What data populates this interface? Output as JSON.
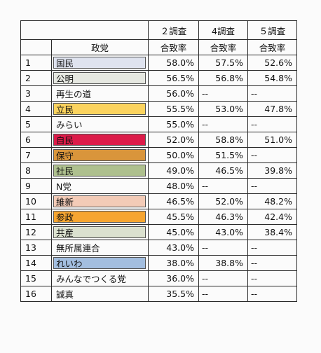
{
  "header": {
    "col_party": "政党",
    "surveys": [
      "２調査",
      "4調査",
      "５調査"
    ],
    "metric": "合致率"
  },
  "rows": [
    {
      "no": "1",
      "party": "国民",
      "color": "#dfe3ef",
      "v": [
        "58.0%",
        "57.5%",
        "52.6%"
      ]
    },
    {
      "no": "2",
      "party": "公明",
      "color": "#e6e8e1",
      "v": [
        "56.5%",
        "56.8%",
        "54.8%"
      ]
    },
    {
      "no": "3",
      "party": "再生の道",
      "color": "",
      "v": [
        "56.0%",
        "--",
        "--"
      ]
    },
    {
      "no": "4",
      "party": "立民",
      "color": "#fbd35e",
      "v": [
        "55.5%",
        "53.0%",
        "47.8%"
      ]
    },
    {
      "no": "5",
      "party": "みらい",
      "color": "",
      "v": [
        "55.0%",
        "--",
        "--"
      ]
    },
    {
      "no": "6",
      "party": "自民",
      "color": "#dc1b49",
      "v": [
        "52.0%",
        "58.8%",
        "51.0%"
      ]
    },
    {
      "no": "7",
      "party": "保守",
      "color": "#d9953b",
      "v": [
        "50.0%",
        "51.5%",
        "--"
      ]
    },
    {
      "no": "8",
      "party": "社民",
      "color": "#aec08e",
      "v": [
        "49.0%",
        "46.5%",
        "39.8%"
      ]
    },
    {
      "no": "9",
      "party": "N党",
      "color": "",
      "v": [
        "48.0%",
        "--",
        "--"
      ]
    },
    {
      "no": "10",
      "party": "維新",
      "color": "#f3cbb7",
      "v": [
        "46.5%",
        "52.0%",
        "48.2%"
      ]
    },
    {
      "no": "11",
      "party": "参政",
      "color": "#f6a531",
      "v": [
        "45.5%",
        "46.3%",
        "42.4%"
      ]
    },
    {
      "no": "12",
      "party": "共産",
      "color": "#dbe1cf",
      "v": [
        "45.0%",
        "43.0%",
        "38.4%"
      ]
    },
    {
      "no": "13",
      "party": "無所属連合",
      "color": "",
      "v": [
        "43.0%",
        "--",
        "--"
      ]
    },
    {
      "no": "14",
      "party": "れいわ",
      "color": "#a3bedf",
      "v": [
        "38.0%",
        "38.8%",
        "--"
      ]
    },
    {
      "no": "15",
      "party": "みんなでつくる党",
      "color": "",
      "v": [
        "36.0%",
        "--",
        "--"
      ]
    },
    {
      "no": "16",
      "party": "誠真",
      "color": "",
      "v": [
        "35.5%",
        "--",
        "--"
      ]
    }
  ]
}
